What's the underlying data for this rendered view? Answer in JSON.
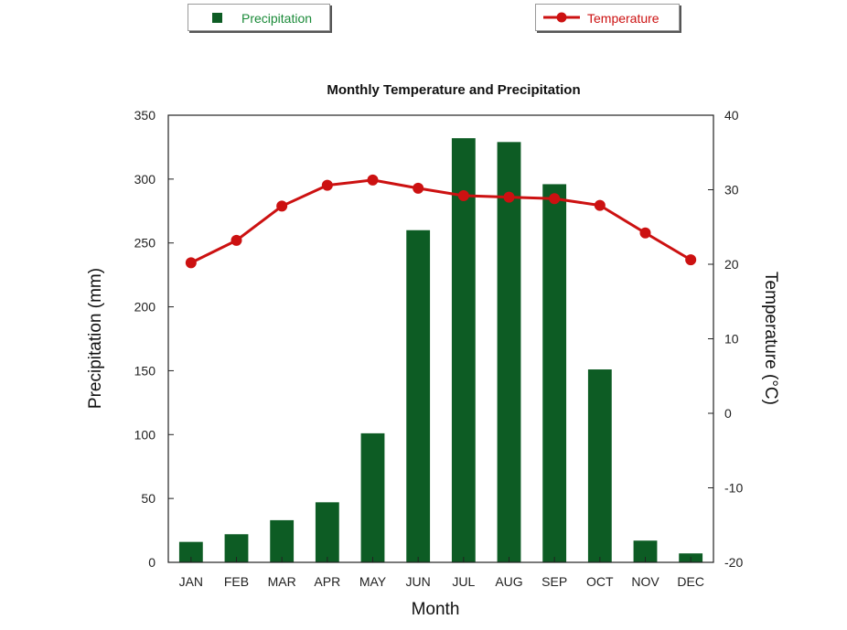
{
  "chart_data": {
    "type": "bar+line",
    "title": "Monthly Temperature and Precipitation",
    "xlabel": "Month",
    "ylabel_left": "Precipitation (mm)",
    "ylabel_right": "Temperature (°C)",
    "categories": [
      "JAN",
      "FEB",
      "MAR",
      "APR",
      "MAY",
      "JUN",
      "JUL",
      "AUG",
      "SEP",
      "OCT",
      "NOV",
      "DEC"
    ],
    "left_ylim": [
      0,
      350
    ],
    "left_ticks": [
      0,
      50,
      100,
      150,
      200,
      250,
      300,
      350
    ],
    "right_ylim": [
      -20,
      40
    ],
    "right_ticks": [
      -20,
      -10,
      0,
      10,
      20,
      30,
      40
    ],
    "series": [
      {
        "name": "Precipitation",
        "type": "bar",
        "axis": "left",
        "color": "#0d5c24",
        "values": [
          16,
          22,
          33,
          47,
          101,
          260,
          332,
          329,
          296,
          151,
          17,
          7
        ]
      },
      {
        "name": "Temperature",
        "type": "line",
        "axis": "right",
        "color": "#cc1111",
        "values": [
          20.2,
          23.2,
          27.8,
          30.6,
          31.3,
          30.2,
          29.2,
          29.0,
          28.8,
          27.9,
          24.2,
          20.6
        ]
      }
    ],
    "grid": false,
    "legend_placement": "top"
  }
}
